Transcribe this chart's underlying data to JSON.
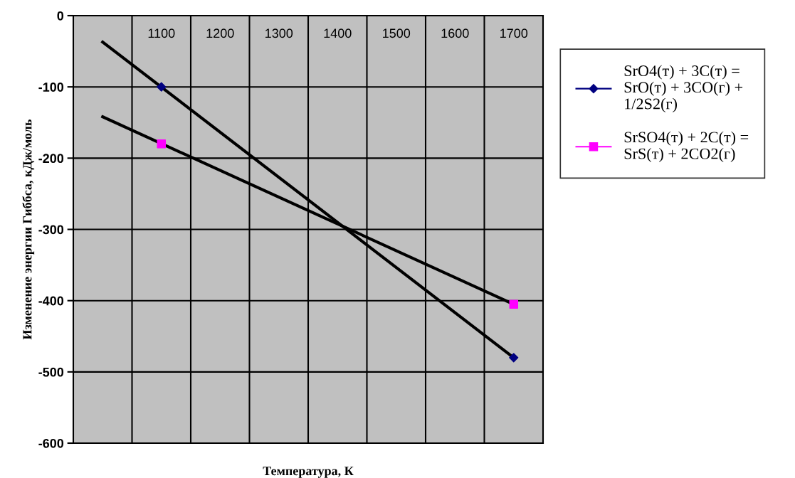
{
  "chart_data": {
    "type": "line",
    "xlabel": "Температура, К",
    "ylabel": "Изменение энергии Гиббса, кДж/моль",
    "categories": [
      null,
      "1100",
      "1200",
      "1300",
      "1400",
      "1500",
      "1600",
      "1700"
    ],
    "series": [
      {
        "name": "SrO4(т) + 3C(т) = SrO(т) + 3CO(г) + 1/2S2(г)",
        "type": "scatter",
        "color": "#000080",
        "marker": "diamond",
        "values": [
          null,
          -100,
          null,
          null,
          null,
          null,
          null,
          -480
        ]
      },
      {
        "name": "SrSO4(т) + 2C(т) = SrS(т) + 2CO2(г)",
        "type": "scatter",
        "color": "#ff00ff",
        "marker": "square",
        "values": [
          null,
          -180,
          null,
          null,
          null,
          null,
          null,
          -405
        ]
      },
      {
        "color": "#000000",
        "marker": "none",
        "values": [
          -37,
          null,
          null,
          null,
          null,
          null,
          null,
          -480
        ]
      },
      {
        "color": "#000000",
        "marker": "none",
        "values": [
          -142,
          null,
          null,
          null,
          null,
          null,
          null,
          -405
        ]
      }
    ],
    "ylim": [
      -600,
      0
    ],
    "yticks": [
      -600,
      -500,
      -400,
      -300,
      -200,
      -100,
      0
    ],
    "grid": true,
    "legend": "right"
  }
}
